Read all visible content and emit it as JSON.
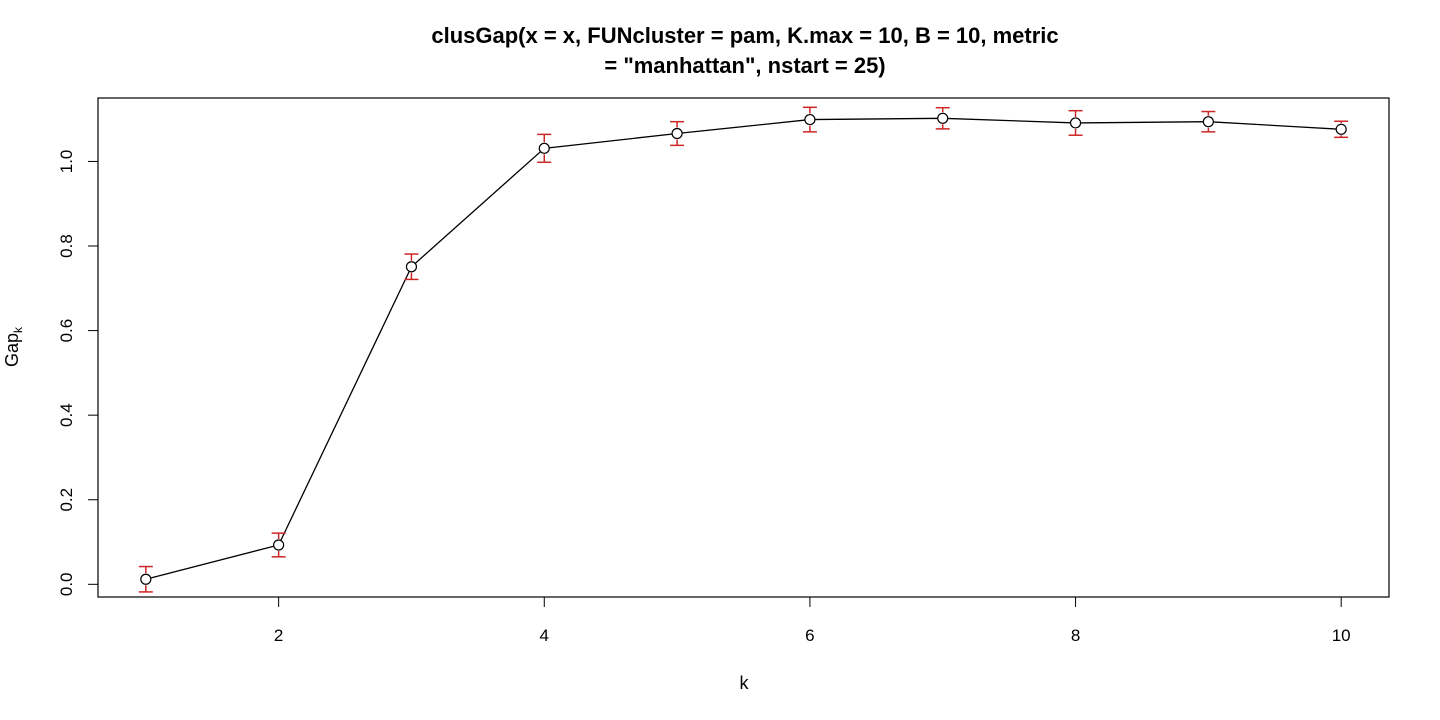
{
  "chart_data": {
    "type": "line",
    "title_line1": "clusGap(x = x, FUNcluster = pam, K.max = 10, B = 10, metric",
    "title_line2": "= \"manhattan\", nstart = 25)",
    "xlabel": "k",
    "ylabel_main": "Gap",
    "ylabel_sub": "k",
    "x": [
      1,
      2,
      3,
      4,
      5,
      6,
      7,
      8,
      9,
      10
    ],
    "y": [
      0.012,
      0.093,
      0.751,
      1.031,
      1.066,
      1.099,
      1.102,
      1.091,
      1.094,
      1.076
    ],
    "se": [
      0.03,
      0.028,
      0.03,
      0.033,
      0.028,
      0.029,
      0.025,
      0.029,
      0.024,
      0.019
    ],
    "xlim": [
      0.64,
      10.36
    ],
    "ylim": [
      -0.03,
      1.15
    ],
    "x_ticks": [
      2,
      4,
      6,
      8,
      10
    ],
    "x_tick_labels": [
      "2",
      "4",
      "6",
      "8",
      "10"
    ],
    "y_ticks": [
      0.0,
      0.2,
      0.4,
      0.6,
      0.8,
      1.0
    ],
    "y_tick_labels": [
      "0.0",
      "0.2",
      "0.4",
      "0.6",
      "0.8",
      "1.0"
    ],
    "line_color": "#000000",
    "errorbar_color": "#cd2626",
    "grid": false,
    "legend": "none"
  }
}
